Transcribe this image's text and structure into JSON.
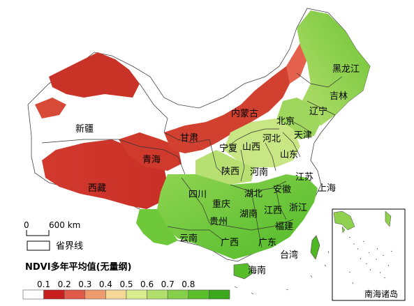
{
  "provinces": [
    "黑龙江",
    "吉林",
    "辽宁",
    "内蒙古",
    "北京",
    "天津",
    "河北",
    "山西",
    "山东",
    "宁夏",
    "甘肃",
    "新疆",
    "青海",
    "西藏",
    "陕西",
    "河南",
    "江苏",
    "安徽",
    "上海",
    "湖北",
    "四川",
    "重庆",
    "贵州",
    "湖南",
    "江西",
    "浙江",
    "福建",
    "云南",
    "广西",
    "广东",
    "台湾",
    "海南"
  ],
  "inset_label": "南海诸岛",
  "scale": {
    "zero": "0",
    "value": "600 km"
  },
  "boundary_legend": "省界线",
  "legend": {
    "title": "NDVI多年平均值(无量纲)",
    "ticks": [
      "0.1",
      "0.2",
      "0.3",
      "0.4",
      "0.5",
      "0.6",
      "0.7",
      "0.8"
    ],
    "colors": [
      "#ffffff",
      "#c81e1e",
      "#e05a4a",
      "#ee9c6e",
      "#f5d896",
      "#d9ec8e",
      "#b2de6b",
      "#86cf48",
      "#5bbf2c",
      "#3ca81c"
    ]
  }
}
